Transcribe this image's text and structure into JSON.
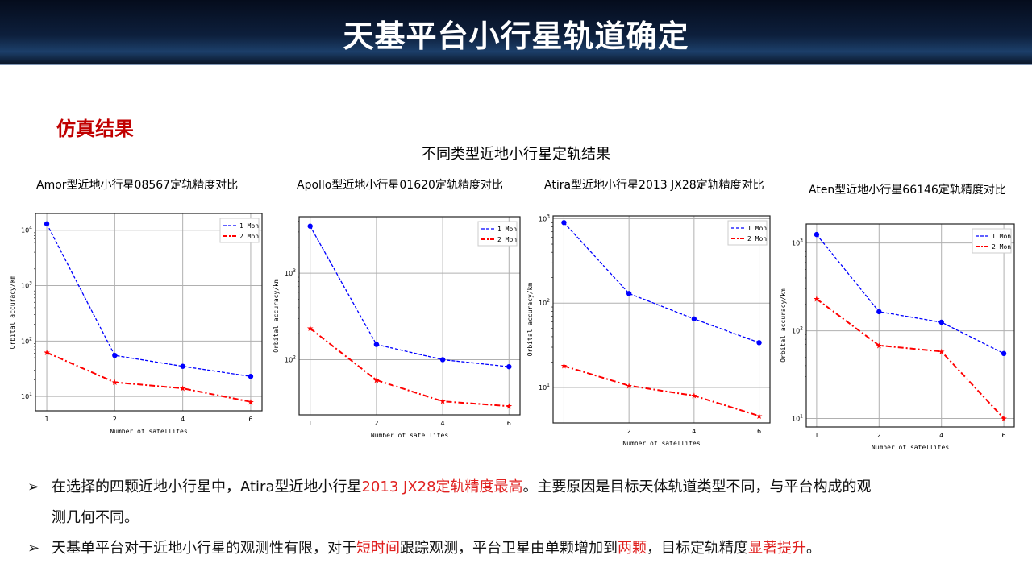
{
  "header": {
    "title": "天基平台小行星轨道确定"
  },
  "section_title": "仿真结果",
  "main_title": "不同类型近地小行星定轨结果",
  "chart_data": [
    {
      "type": "line",
      "title": "Amor型近地小行星08567定轨精度对比",
      "xlabel": "Number of satellites",
      "ylabel": "Orbital accuracy/km",
      "yscale": "log",
      "ylim": [
        5.5,
        20000
      ],
      "categories": [
        "1",
        "2",
        "4",
        "6"
      ],
      "legend": "top-right",
      "grid": true,
      "series": [
        {
          "name": "1 Mon",
          "color": "#0000ff",
          "values": [
            13000,
            55,
            35,
            23
          ]
        },
        {
          "name": "2 Mon",
          "color": "#ff0000",
          "values": [
            62,
            18,
            14,
            8
          ]
        }
      ]
    },
    {
      "type": "line",
      "title": "Apollo型近地小行星01620定轨精度对比",
      "xlabel": "Number of satellites",
      "ylabel": "Orbital accuracy/km",
      "yscale": "log",
      "ylim": [
        23,
        4500
      ],
      "categories": [
        "1",
        "2",
        "4",
        "6"
      ],
      "legend": "top-right",
      "grid": true,
      "series": [
        {
          "name": "1 Mon",
          "color": "#0000ff",
          "values": [
            3500,
            150,
            100,
            83
          ]
        },
        {
          "name": "2 Mon",
          "color": "#ff0000",
          "values": [
            230,
            58,
            33,
            29
          ]
        }
      ]
    },
    {
      "type": "line",
      "title": "Atira型近地小行星2013 JX28定轨精度对比",
      "xlabel": "Number of satellites",
      "ylabel": "Orbital accuracy/km",
      "yscale": "log",
      "ylim": [
        3.8,
        1080
      ],
      "categories": [
        "1",
        "2",
        "4",
        "6"
      ],
      "legend": "top-right",
      "grid": true,
      "series": [
        {
          "name": "1 Mon",
          "color": "#0000ff",
          "values": [
            900,
            130,
            65,
            34
          ]
        },
        {
          "name": "2 Mon",
          "color": "#ff0000",
          "values": [
            18,
            10.5,
            8,
            4.6
          ]
        }
      ]
    },
    {
      "type": "line",
      "title": "Aten型近地小行星66146定轨精度对比",
      "xlabel": "Number of satellites",
      "ylabel": "Orbital accuracy/km",
      "yscale": "log",
      "ylim": [
        8,
        1650
      ],
      "categories": [
        "1",
        "2",
        "4",
        "6"
      ],
      "legend": "top-right",
      "grid": true,
      "series": [
        {
          "name": "1 Mon",
          "color": "#0000ff",
          "values": [
            1250,
            165,
            125,
            55
          ]
        },
        {
          "name": "2 Mon",
          "color": "#ff0000",
          "values": [
            230,
            68,
            58,
            10
          ]
        }
      ]
    }
  ],
  "bullets": [
    {
      "marker": "➢",
      "parts": [
        "在选择的四颗近地小行星中，Atira型近地小行星",
        "2013 JX28定轨精度最高",
        "。主要原因是目标天体轨道类型不同，与平台构成的观"
      ],
      "cont": "测几何不同。"
    },
    {
      "marker": "➢",
      "parts": [
        "天基单平台对于近地小行星的观测性有限，对于",
        "短时间",
        "跟踪观测，平台卫星由单颗增加到",
        "两颗",
        "，目标定轨精度",
        "显著提升",
        "。"
      ]
    }
  ]
}
